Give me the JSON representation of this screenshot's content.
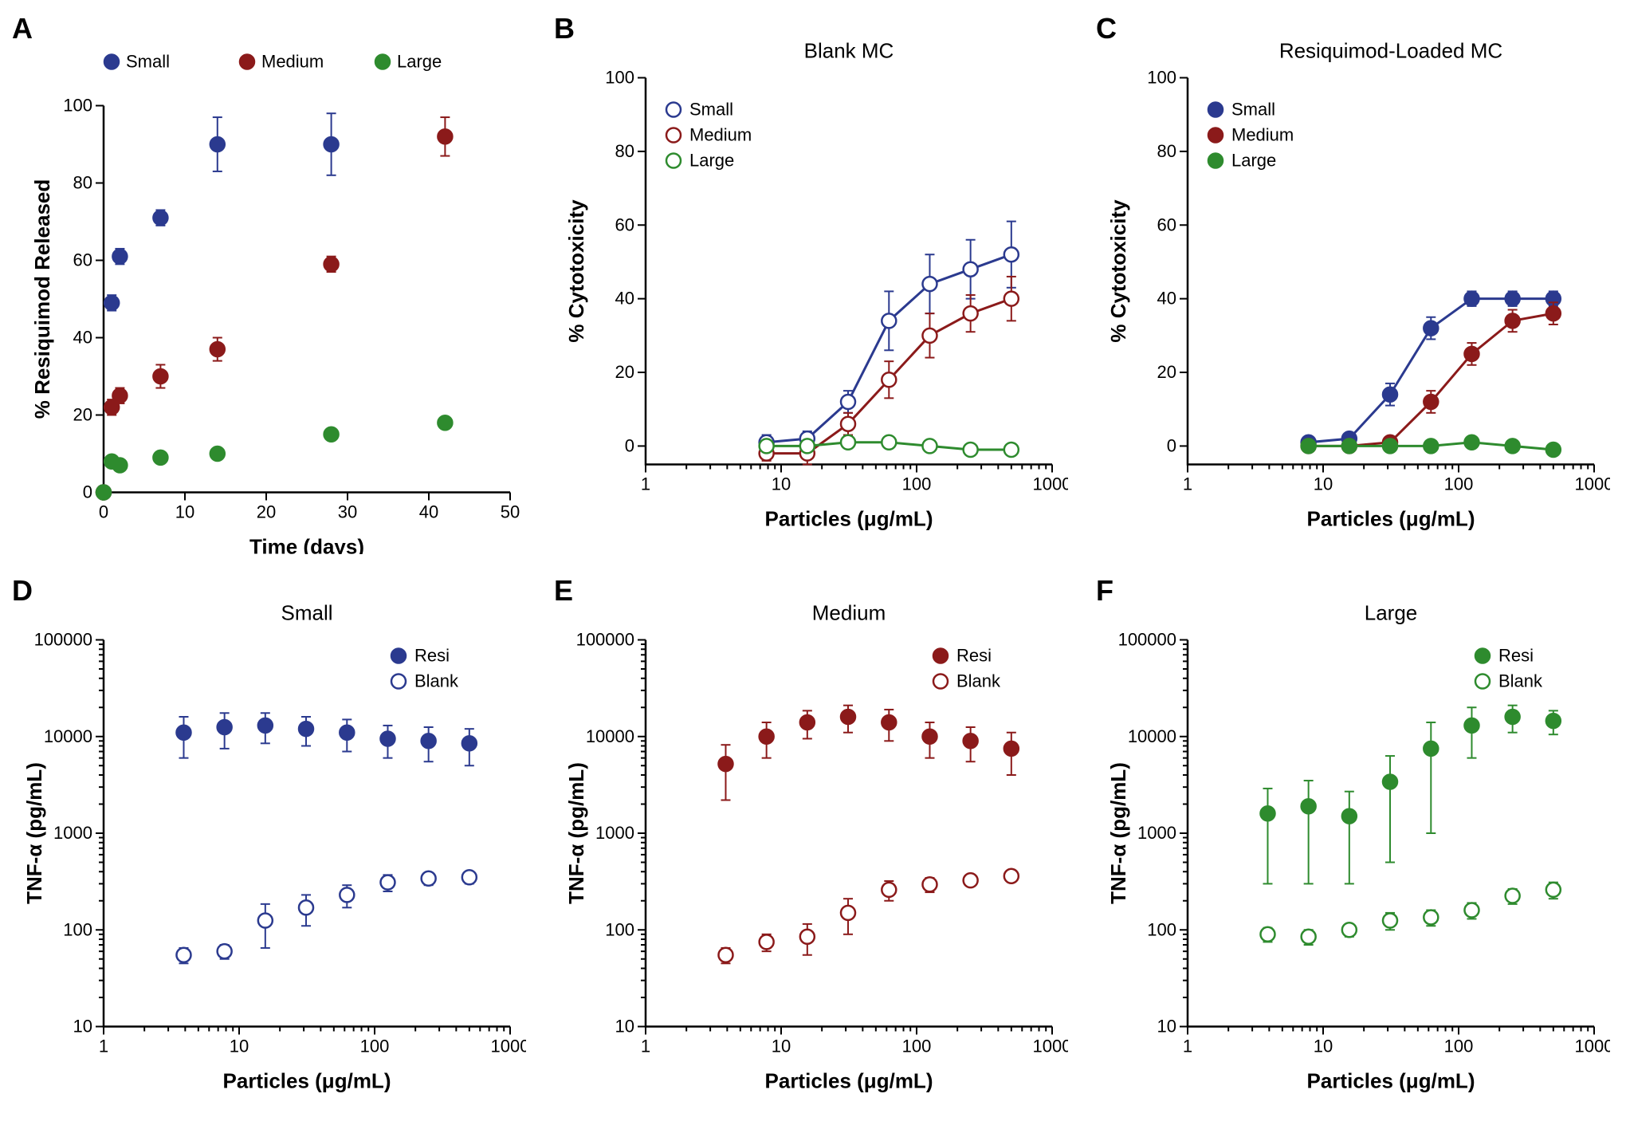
{
  "colors": {
    "small": "#2b3a8f",
    "medium": "#8b1a1a",
    "large": "#2e8b2e",
    "axis": "#000000",
    "background": "#ffffff"
  },
  "marker_radius": 9,
  "error_cap": 6,
  "panelA": {
    "label": "A",
    "xlabel": "Time (days)",
    "ylabel": "%  Resiquimod Released",
    "xlim": [
      0,
      50
    ],
    "xstep": 10,
    "ylim": [
      0,
      100
    ],
    "ystep": 20,
    "legend": [
      {
        "label": "Small",
        "color": "small",
        "filled": true
      },
      {
        "label": "Medium",
        "color": "medium",
        "filled": true
      },
      {
        "label": "Large",
        "color": "large",
        "filled": true
      }
    ],
    "series": {
      "small": {
        "x": [
          0,
          1,
          2,
          7,
          14,
          28
        ],
        "y": [
          0,
          49,
          61,
          71,
          90,
          90
        ],
        "err": [
          0,
          2,
          2,
          2,
          7,
          8
        ]
      },
      "medium": {
        "x": [
          0,
          1,
          2,
          7,
          14,
          28,
          42
        ],
        "y": [
          0,
          22,
          25,
          30,
          37,
          59,
          92
        ],
        "err": [
          0,
          2,
          2,
          3,
          3,
          2,
          5
        ]
      },
      "large": {
        "x": [
          0,
          1,
          2,
          7,
          14,
          28,
          42
        ],
        "y": [
          0,
          8,
          7,
          9,
          10,
          15,
          18
        ],
        "err": [
          0,
          1,
          1,
          1,
          1,
          1,
          1
        ]
      }
    }
  },
  "panelB": {
    "label": "B",
    "title": "Blank MC",
    "xlabel": "Particles (μg/mL)",
    "ylabel": "% Cytotoxicity",
    "xlog": true,
    "xlim": [
      1,
      1000
    ],
    "ylim": [
      -5,
      100
    ],
    "ystep": 20,
    "legend": [
      {
        "label": "Small",
        "color": "small",
        "filled": false
      },
      {
        "label": "Medium",
        "color": "medium",
        "filled": false
      },
      {
        "label": "Large",
        "color": "large",
        "filled": false
      }
    ],
    "series": {
      "small": {
        "x": [
          7.8,
          15.6,
          31.2,
          62.5,
          125,
          250,
          500
        ],
        "y": [
          1,
          2,
          12,
          34,
          44,
          48,
          52
        ],
        "err": [
          2,
          2,
          3,
          8,
          8,
          8,
          9
        ],
        "fit": true
      },
      "medium": {
        "x": [
          7.8,
          15.6,
          31.2,
          62.5,
          125,
          250,
          500
        ],
        "y": [
          -2,
          -2,
          6,
          18,
          30,
          36,
          40
        ],
        "err": [
          2,
          3,
          3,
          5,
          6,
          5,
          6
        ],
        "fit": true
      },
      "large": {
        "x": [
          7.8,
          15.6,
          31.2,
          62.5,
          125,
          250,
          500
        ],
        "y": [
          0,
          0,
          1,
          1,
          0,
          -1,
          -1
        ],
        "err": [
          1,
          1,
          1,
          1,
          1,
          1,
          1
        ],
        "fit": true
      }
    }
  },
  "panelC": {
    "label": "C",
    "title": "Resiquimod-Loaded MC",
    "xlabel": "Particles (μg/mL)",
    "ylabel": "% Cytotoxicity",
    "xlog": true,
    "xlim": [
      1,
      1000
    ],
    "ylim": [
      -5,
      100
    ],
    "ystep": 20,
    "legend": [
      {
        "label": "Small",
        "color": "small",
        "filled": true
      },
      {
        "label": "Medium",
        "color": "medium",
        "filled": true
      },
      {
        "label": "Large",
        "color": "large",
        "filled": true
      }
    ],
    "series": {
      "small": {
        "x": [
          7.8,
          15.6,
          31.2,
          62.5,
          125,
          250,
          500
        ],
        "y": [
          1,
          2,
          14,
          32,
          40,
          40,
          40
        ],
        "err": [
          1,
          1,
          3,
          3,
          2,
          2,
          2
        ],
        "fit": true
      },
      "medium": {
        "x": [
          7.8,
          15.6,
          31.2,
          62.5,
          125,
          250,
          500
        ],
        "y": [
          0,
          0,
          1,
          12,
          25,
          34,
          36
        ],
        "err": [
          1,
          1,
          1,
          3,
          3,
          3,
          3
        ],
        "fit": true
      },
      "large": {
        "x": [
          7.8,
          15.6,
          31.2,
          62.5,
          125,
          250,
          500
        ],
        "y": [
          0,
          0,
          0,
          0,
          1,
          0,
          -1
        ],
        "err": [
          1,
          1,
          1,
          1,
          1,
          1,
          1
        ],
        "fit": true
      }
    }
  },
  "panelD": {
    "label": "D",
    "title": "Small",
    "xlabel": "Particles (μg/mL)",
    "ylabel": "TNF-α (pg/mL)",
    "xlog": true,
    "xlim": [
      1,
      1000
    ],
    "ylog": true,
    "ylim": [
      10,
      100000
    ],
    "color": "small",
    "legend": [
      {
        "label": "Resi",
        "filled": true
      },
      {
        "label": "Blank",
        "filled": false
      }
    ],
    "series": {
      "resi": {
        "x": [
          3.9,
          7.8,
          15.6,
          31.2,
          62.5,
          125,
          250,
          500
        ],
        "y": [
          11000,
          12500,
          13000,
          12000,
          11000,
          9500,
          9000,
          8500
        ],
        "err": [
          5000,
          5000,
          4500,
          4000,
          4000,
          3500,
          3500,
          3500
        ]
      },
      "blank": {
        "x": [
          3.9,
          7.8,
          15.6,
          31.2,
          62.5,
          125,
          250,
          500
        ],
        "y": [
          55,
          60,
          125,
          170,
          230,
          310,
          340,
          350
        ],
        "err": [
          10,
          10,
          60,
          60,
          60,
          60,
          50,
          50
        ]
      }
    }
  },
  "panelE": {
    "label": "E",
    "title": "Medium",
    "xlabel": "Particles (μg/mL)",
    "ylabel": "TNF-α (pg/mL)",
    "xlog": true,
    "xlim": [
      1,
      1000
    ],
    "ylog": true,
    "ylim": [
      10,
      100000
    ],
    "color": "medium",
    "legend": [
      {
        "label": "Resi",
        "filled": true
      },
      {
        "label": "Blank",
        "filled": false
      }
    ],
    "series": {
      "resi": {
        "x": [
          3.9,
          7.8,
          15.6,
          31.2,
          62.5,
          125,
          250,
          500
        ],
        "y": [
          5200,
          10000,
          14000,
          16000,
          14000,
          10000,
          9000,
          7500
        ],
        "err": [
          3000,
          4000,
          4500,
          5000,
          5000,
          4000,
          3500,
          3500
        ]
      },
      "blank": {
        "x": [
          3.9,
          7.8,
          15.6,
          31.2,
          62.5,
          125,
          250,
          500
        ],
        "y": [
          55,
          75,
          85,
          150,
          260,
          295,
          325,
          360
        ],
        "err": [
          10,
          15,
          30,
          60,
          60,
          50,
          40,
          40
        ]
      }
    }
  },
  "panelF": {
    "label": "F",
    "title": "Large",
    "xlabel": "Particles (μg/mL)",
    "ylabel": "TNF-α (pg/mL)",
    "xlog": true,
    "xlim": [
      1,
      1000
    ],
    "ylog": true,
    "ylim": [
      10,
      100000
    ],
    "color": "large",
    "legend": [
      {
        "label": "Resi",
        "filled": true
      },
      {
        "label": "Blank",
        "filled": false
      }
    ],
    "series": {
      "resi": {
        "x": [
          3.9,
          7.8,
          15.6,
          31.2,
          62.5,
          125,
          250,
          500
        ],
        "y": [
          1600,
          1900,
          1500,
          3400,
          7500,
          13000,
          16000,
          14500
        ],
        "err": [
          1300,
          1600,
          1200,
          2900,
          6500,
          7000,
          5000,
          4000
        ]
      },
      "blank": {
        "x": [
          3.9,
          7.8,
          15.6,
          31.2,
          62.5,
          125,
          250,
          500
        ],
        "y": [
          90,
          85,
          100,
          125,
          135,
          160,
          225,
          260
        ],
        "err": [
          15,
          15,
          15,
          25,
          25,
          30,
          40,
          50
        ]
      }
    }
  }
}
